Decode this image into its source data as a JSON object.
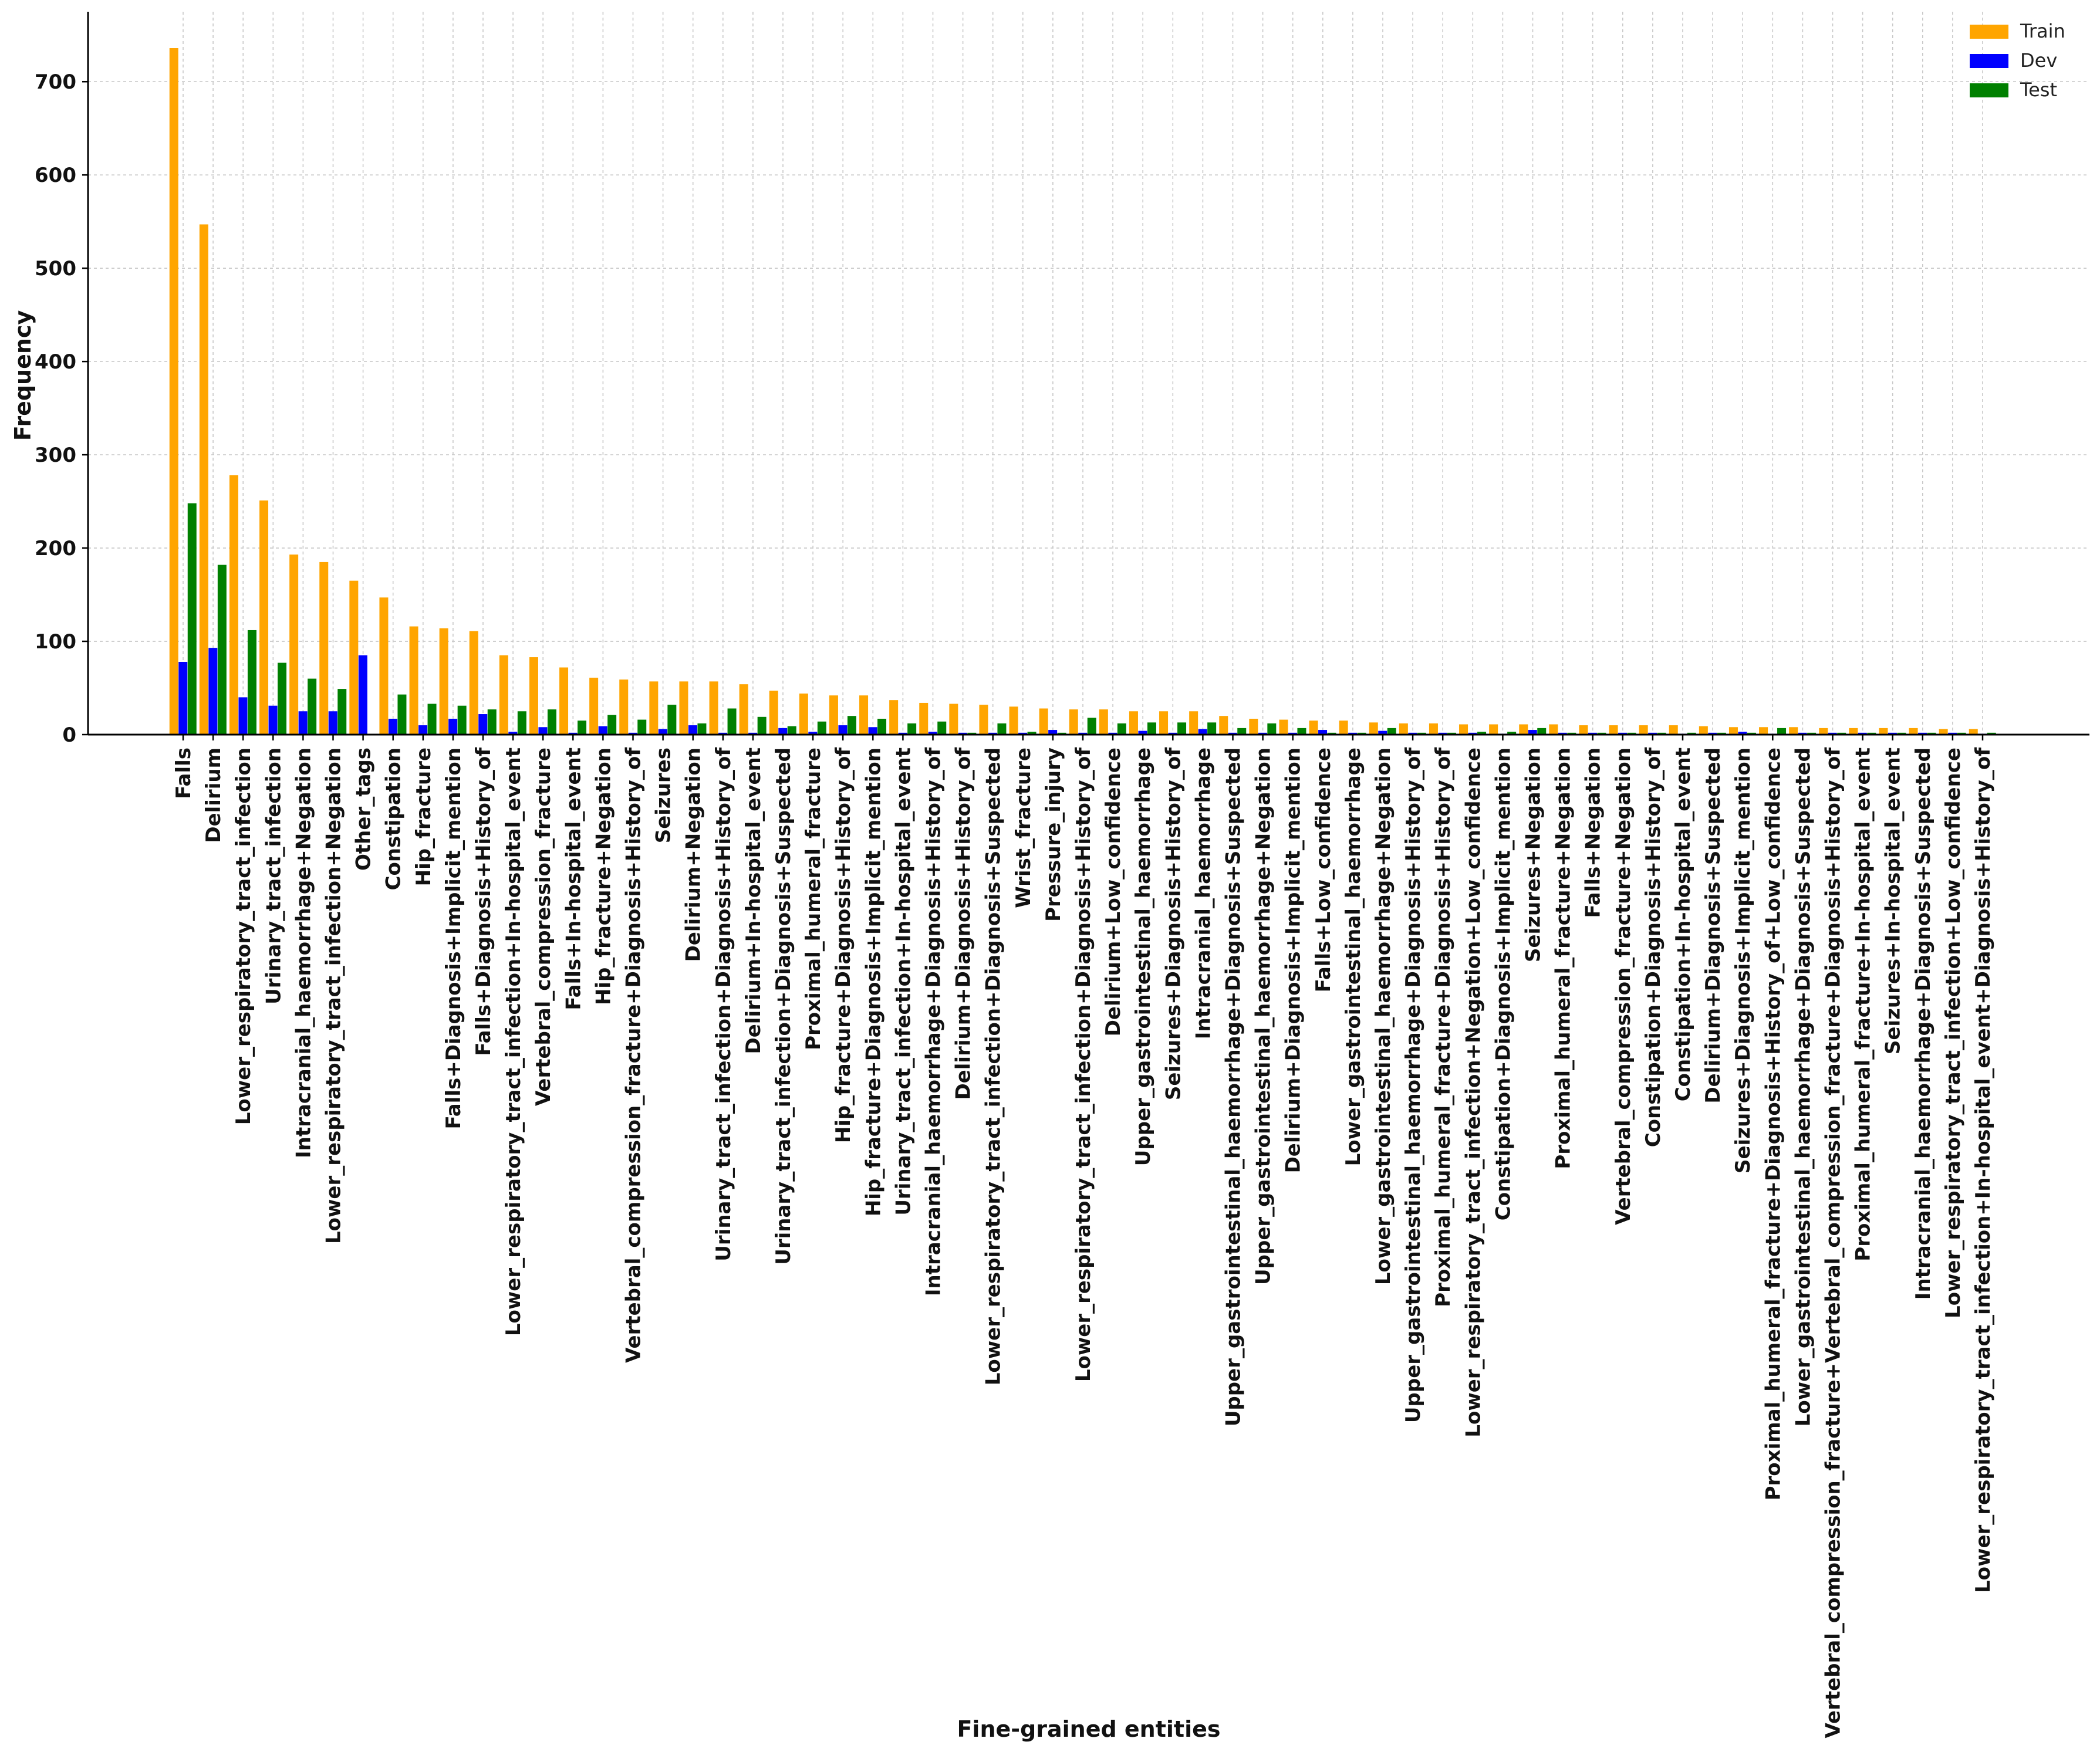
{
  "chart_data": {
    "type": "bar",
    "title": "",
    "xlabel": "Fine-grained entities",
    "ylabel": "Frequency",
    "ylim": [
      0,
      775
    ],
    "yticks": [
      0,
      100,
      200,
      300,
      400,
      500,
      600,
      700
    ],
    "grid": true,
    "legend_position": "top-right",
    "categories": [
      "Falls",
      "Delirium",
      "Lower_respiratory_tract_infection",
      "Urinary_tract_infection",
      "Intracranial_haemorrhage+Negation",
      "Lower_respiratory_tract_infection+Negation",
      "Other_tags",
      "Constipation",
      "Hip_fracture",
      "Falls+Diagnosis+Implicit_mention",
      "Falls+Diagnosis+History_of",
      "Lower_respiratory_tract_infection+In-hospital_event",
      "Vertebral_compression_fracture",
      "Falls+In-hospital_event",
      "Hip_fracture+Negation",
      "Vertebral_compression_fracture+Diagnosis+History_of",
      "Seizures",
      "Delirium+Negation",
      "Urinary_tract_infection+Diagnosis+History_of",
      "Delirium+In-hospital_event",
      "Urinary_tract_infection+Diagnosis+Suspected",
      "Proximal_humeral_fracture",
      "Hip_fracture+Diagnosis+History_of",
      "Hip_fracture+Diagnosis+Implicit_mention",
      "Urinary_tract_infection+In-hospital_event",
      "Intracranial_haemorrhage+Diagnosis+History_of",
      "Delirium+Diagnosis+History_of",
      "Lower_respiratory_tract_infection+Diagnosis+Suspected",
      "Wrist_fracture",
      "Pressure_injury",
      "Lower_respiratory_tract_infection+Diagnosis+History_of",
      "Delirium+Low_confidence",
      "Upper_gastrointestinal_haemorrhage",
      "Seizures+Diagnosis+History_of",
      "Intracranial_haemorrhage",
      "Upper_gastrointestinal_haemorrhage+Diagnosis+Suspected",
      "Upper_gastrointestinal_haemorrhage+Negation",
      "Delirium+Diagnosis+Implicit_mention",
      "Falls+Low_confidence",
      "Lower_gastrointestinal_haemorrhage",
      "Lower_gastrointestinal_haemorrhage+Negation",
      "Upper_gastrointestinal_haemorrhage+Diagnosis+History_of",
      "Proximal_humeral_fracture+Diagnosis+History_of",
      "Lower_respiratory_tract_infection+Negation+Low_confidence",
      "Constipation+Diagnosis+Implicit_mention",
      "Seizures+Negation",
      "Proximal_humeral_fracture+Negation",
      "Falls+Negation",
      "Vertebral_compression_fracture+Negation",
      "Constipation+Diagnosis+History_of",
      "Constipation+In-hospital_event",
      "Delirium+Diagnosis+Suspected",
      "Seizures+Diagnosis+Implicit_mention",
      "Proximal_humeral_fracture+Diagnosis+History_of+Low_confidence",
      "Lower_gastrointestinal_haemorrhage+Diagnosis+Suspected",
      "Vertebral_compression_fracture+Vertebral_compression_fracture+Diagnosis+History_of",
      "Proximal_humeral_fracture+In-hospital_event",
      "Seizures+In-hospital_event",
      "Intracranial_haemorrhage+Diagnosis+Suspected",
      "Lower_respiratory_tract_infection+Low_confidence",
      "Lower_respiratory_tract_infection+In-hospital_event+Diagnosis+History_of"
    ],
    "series": [
      {
        "name": "Train",
        "color": "#FFA500",
        "values": [
          736,
          547,
          278,
          251,
          193,
          185,
          165,
          147,
          116,
          114,
          111,
          85,
          83,
          72,
          61,
          59,
          57,
          57,
          57,
          54,
          47,
          44,
          42,
          42,
          37,
          34,
          33,
          32,
          30,
          28,
          27,
          27,
          25,
          25,
          25,
          20,
          17,
          16,
          15,
          15,
          13,
          12,
          12,
          11,
          11,
          11,
          11,
          10,
          10,
          10,
          10,
          9,
          8,
          8,
          8,
          7,
          7,
          7,
          7,
          6,
          6
        ]
      },
      {
        "name": "Dev",
        "color": "#0000FF",
        "values": [
          78,
          93,
          40,
          31,
          25,
          25,
          85,
          17,
          10,
          17,
          22,
          3,
          8,
          2,
          9,
          2,
          6,
          10,
          2,
          2,
          7,
          3,
          10,
          8,
          2,
          3,
          2,
          2,
          2,
          5,
          2,
          2,
          4,
          2,
          6,
          2,
          2,
          2,
          5,
          2,
          4,
          2,
          2,
          2,
          1,
          5,
          2,
          2,
          2,
          2,
          1,
          2,
          3,
          1,
          2,
          2,
          2,
          2,
          2,
          2,
          1
        ]
      },
      {
        "name": "Test",
        "color": "#008000",
        "values": [
          248,
          182,
          112,
          77,
          60,
          49,
          0,
          43,
          33,
          31,
          27,
          25,
          27,
          15,
          21,
          16,
          32,
          12,
          28,
          19,
          9,
          14,
          20,
          17,
          12,
          14,
          2,
          12,
          3,
          2,
          18,
          12,
          13,
          13,
          13,
          7,
          12,
          7,
          2,
          2,
          7,
          2,
          2,
          3,
          3,
          7,
          2,
          2,
          2,
          2,
          2,
          2,
          2,
          7,
          2,
          2,
          2,
          2,
          2,
          2,
          2
        ]
      }
    ]
  }
}
